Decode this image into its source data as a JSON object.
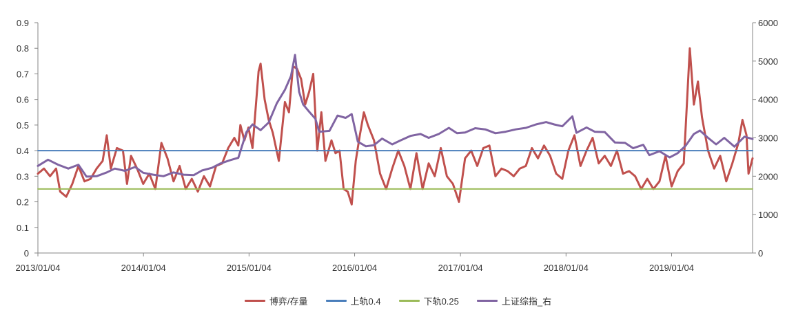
{
  "chart_data": {
    "type": "line",
    "title": "",
    "xlabel": "",
    "ylabel_left": "",
    "ylabel_right": "",
    "x_ticks": [
      "2013/01/04",
      "2014/01/04",
      "2015/01/04",
      "2016/01/04",
      "2017/01/04",
      "2018/01/04",
      "2019/01/04"
    ],
    "x_range": [
      "2013/01/04",
      "2019/10/11"
    ],
    "y_left_ticks": [
      "0",
      "0.1",
      "0.2",
      "0.3",
      "0.4",
      "0.5",
      "0.6",
      "0.7",
      "0.8",
      "0.9"
    ],
    "y_left_range": [
      0,
      0.9
    ],
    "y_right_ticks": [
      "0",
      "1000",
      "2000",
      "3000",
      "4000",
      "5000",
      "6000"
    ],
    "y_right_range": [
      0,
      6000
    ],
    "grid": false,
    "legend_position": "bottom",
    "series": [
      {
        "name": "博弈/存量",
        "axis": "left",
        "color": "#c0504d",
        "points": [
          [
            "2013/01/04",
            0.31
          ],
          [
            "2013/01/25",
            0.33
          ],
          [
            "2013/02/15",
            0.3
          ],
          [
            "2013/03/08",
            0.33
          ],
          [
            "2013/03/22",
            0.24
          ],
          [
            "2013/04/12",
            0.22
          ],
          [
            "2013/05/03",
            0.27
          ],
          [
            "2013/05/24",
            0.34
          ],
          [
            "2013/06/14",
            0.28
          ],
          [
            "2013/07/05",
            0.29
          ],
          [
            "2013/07/26",
            0.33
          ],
          [
            "2013/08/16",
            0.36
          ],
          [
            "2013/08/30",
            0.46
          ],
          [
            "2013/09/13",
            0.33
          ],
          [
            "2013/10/04",
            0.41
          ],
          [
            "2013/10/25",
            0.4
          ],
          [
            "2013/11/08",
            0.27
          ],
          [
            "2013/11/22",
            0.38
          ],
          [
            "2013/12/13",
            0.33
          ],
          [
            "2014/01/03",
            0.27
          ],
          [
            "2014/01/24",
            0.31
          ],
          [
            "2014/02/14",
            0.25
          ],
          [
            "2014/03/07",
            0.43
          ],
          [
            "2014/03/28",
            0.37
          ],
          [
            "2014/04/18",
            0.28
          ],
          [
            "2014/05/09",
            0.34
          ],
          [
            "2014/05/30",
            0.25
          ],
          [
            "2014/06/20",
            0.29
          ],
          [
            "2014/07/11",
            0.24
          ],
          [
            "2014/08/01",
            0.3
          ],
          [
            "2014/08/22",
            0.26
          ],
          [
            "2014/09/12",
            0.34
          ],
          [
            "2014/10/03",
            0.35
          ],
          [
            "2014/10/24",
            0.41
          ],
          [
            "2014/11/14",
            0.45
          ],
          [
            "2014/11/28",
            0.42
          ],
          [
            "2014/12/05",
            0.5
          ],
          [
            "2014/12/19",
            0.44
          ],
          [
            "2015/01/02",
            0.49
          ],
          [
            "2015/01/16",
            0.41
          ],
          [
            "2015/02/06",
            0.71
          ],
          [
            "2015/02/13",
            0.74
          ],
          [
            "2015/02/27",
            0.6
          ],
          [
            "2015/03/13",
            0.52
          ],
          [
            "2015/03/27",
            0.47
          ],
          [
            "2015/04/17",
            0.36
          ],
          [
            "2015/05/08",
            0.59
          ],
          [
            "2015/05/22",
            0.55
          ],
          [
            "2015/06/05",
            0.73
          ],
          [
            "2015/06/19",
            0.72
          ],
          [
            "2015/07/03",
            0.68
          ],
          [
            "2015/07/17",
            0.58
          ],
          [
            "2015/07/31",
            0.63
          ],
          [
            "2015/08/14",
            0.7
          ],
          [
            "2015/08/28",
            0.4
          ],
          [
            "2015/09/11",
            0.55
          ],
          [
            "2015/09/25",
            0.36
          ],
          [
            "2015/10/16",
            0.44
          ],
          [
            "2015/10/30",
            0.39
          ],
          [
            "2015/11/13",
            0.4
          ],
          [
            "2015/11/27",
            0.25
          ],
          [
            "2015/12/11",
            0.24
          ],
          [
            "2015/12/25",
            0.19
          ],
          [
            "2016/01/08",
            0.36
          ],
          [
            "2016/01/22",
            0.46
          ],
          [
            "2016/02/05",
            0.55
          ],
          [
            "2016/02/19",
            0.5
          ],
          [
            "2016/03/11",
            0.44
          ],
          [
            "2016/04/01",
            0.31
          ],
          [
            "2016/04/22",
            0.25
          ],
          [
            "2016/05/13",
            0.33
          ],
          [
            "2016/06/03",
            0.4
          ],
          [
            "2016/06/24",
            0.34
          ],
          [
            "2016/07/15",
            0.25
          ],
          [
            "2016/08/05",
            0.39
          ],
          [
            "2016/08/26",
            0.25
          ],
          [
            "2016/09/16",
            0.35
          ],
          [
            "2016/10/07",
            0.3
          ],
          [
            "2016/10/28",
            0.41
          ],
          [
            "2016/11/18",
            0.3
          ],
          [
            "2016/12/09",
            0.27
          ],
          [
            "2016/12/30",
            0.2
          ],
          [
            "2017/01/20",
            0.37
          ],
          [
            "2017/02/10",
            0.4
          ],
          [
            "2017/03/03",
            0.34
          ],
          [
            "2017/03/24",
            0.41
          ],
          [
            "2017/04/14",
            0.42
          ],
          [
            "2017/05/05",
            0.3
          ],
          [
            "2017/05/26",
            0.33
          ],
          [
            "2017/06/16",
            0.32
          ],
          [
            "2017/07/07",
            0.3
          ],
          [
            "2017/07/28",
            0.33
          ],
          [
            "2017/08/18",
            0.34
          ],
          [
            "2017/09/08",
            0.41
          ],
          [
            "2017/09/29",
            0.37
          ],
          [
            "2017/10/20",
            0.42
          ],
          [
            "2017/11/10",
            0.38
          ],
          [
            "2017/12/01",
            0.31
          ],
          [
            "2017/12/22",
            0.29
          ],
          [
            "2018/01/12",
            0.4
          ],
          [
            "2018/02/02",
            0.46
          ],
          [
            "2018/02/23",
            0.34
          ],
          [
            "2018/03/16",
            0.4
          ],
          [
            "2018/04/06",
            0.45
          ],
          [
            "2018/04/27",
            0.35
          ],
          [
            "2018/05/18",
            0.38
          ],
          [
            "2018/06/08",
            0.34
          ],
          [
            "2018/06/29",
            0.4
          ],
          [
            "2018/07/20",
            0.31
          ],
          [
            "2018/08/10",
            0.32
          ],
          [
            "2018/08/31",
            0.3
          ],
          [
            "2018/09/21",
            0.25
          ],
          [
            "2018/10/12",
            0.29
          ],
          [
            "2018/11/02",
            0.25
          ],
          [
            "2018/11/23",
            0.28
          ],
          [
            "2018/12/14",
            0.38
          ],
          [
            "2019/01/04",
            0.26
          ],
          [
            "2019/01/25",
            0.32
          ],
          [
            "2019/02/15",
            0.35
          ],
          [
            "2019/02/22",
            0.5
          ],
          [
            "2019/03/08",
            0.8
          ],
          [
            "2019/03/22",
            0.58
          ],
          [
            "2019/04/05",
            0.67
          ],
          [
            "2019/04/19",
            0.53
          ],
          [
            "2019/05/10",
            0.4
          ],
          [
            "2019/05/31",
            0.33
          ],
          [
            "2019/06/21",
            0.38
          ],
          [
            "2019/07/12",
            0.28
          ],
          [
            "2019/08/02",
            0.35
          ],
          [
            "2019/08/23",
            0.43
          ],
          [
            "2019/09/06",
            0.52
          ],
          [
            "2019/09/20",
            0.46
          ],
          [
            "2019/09/27",
            0.31
          ],
          [
            "2019/10/11",
            0.37
          ]
        ]
      },
      {
        "name": "上轨0.4",
        "axis": "left",
        "color": "#4a7ebb",
        "points": [
          [
            "2013/01/04",
            0.4
          ],
          [
            "2019/10/11",
            0.4
          ]
        ]
      },
      {
        "name": "下轨0.25",
        "axis": "left",
        "color": "#9bbb59",
        "points": [
          [
            "2013/01/04",
            0.25
          ],
          [
            "2019/10/11",
            0.25
          ]
        ]
      },
      {
        "name": "上证综指_右",
        "axis": "right",
        "color": "#8064a2",
        "points": [
          [
            "2013/01/04",
            2270
          ],
          [
            "2013/02/08",
            2430
          ],
          [
            "2013/03/15",
            2300
          ],
          [
            "2013/04/19",
            2200
          ],
          [
            "2013/05/24",
            2300
          ],
          [
            "2013/06/21",
            1990
          ],
          [
            "2013/07/26",
            2000
          ],
          [
            "2013/08/30",
            2100
          ],
          [
            "2013/09/27",
            2200
          ],
          [
            "2013/11/01",
            2140
          ],
          [
            "2013/12/06",
            2240
          ],
          [
            "2014/01/03",
            2090
          ],
          [
            "2014/02/07",
            2040
          ],
          [
            "2014/03/14",
            2000
          ],
          [
            "2014/04/18",
            2100
          ],
          [
            "2014/05/23",
            2040
          ],
          [
            "2014/06/27",
            2030
          ],
          [
            "2014/07/25",
            2150
          ],
          [
            "2014/08/29",
            2220
          ],
          [
            "2014/09/26",
            2330
          ],
          [
            "2014/10/31",
            2420
          ],
          [
            "2014/11/28",
            2480
          ],
          [
            "2014/12/26",
            3150
          ],
          [
            "2015/01/16",
            3350
          ],
          [
            "2015/02/13",
            3200
          ],
          [
            "2015/03/13",
            3400
          ],
          [
            "2015/04/10",
            3900
          ],
          [
            "2015/05/08",
            4250
          ],
          [
            "2015/05/29",
            4610
          ],
          [
            "2015/06/12",
            5160
          ],
          [
            "2015/06/26",
            4200
          ],
          [
            "2015/07/10",
            3870
          ],
          [
            "2015/07/31",
            3680
          ],
          [
            "2015/08/21",
            3500
          ],
          [
            "2015/09/04",
            3160
          ],
          [
            "2015/10/09",
            3180
          ],
          [
            "2015/11/06",
            3580
          ],
          [
            "2015/12/04",
            3520
          ],
          [
            "2015/12/25",
            3620
          ],
          [
            "2016/01/15",
            2900
          ],
          [
            "2016/02/12",
            2780
          ],
          [
            "2016/03/11",
            2810
          ],
          [
            "2016/04/08",
            2980
          ],
          [
            "2016/05/13",
            2830
          ],
          [
            "2016/06/10",
            2930
          ],
          [
            "2016/07/15",
            3050
          ],
          [
            "2016/08/19",
            3100
          ],
          [
            "2016/09/16",
            3000
          ],
          [
            "2016/10/21",
            3100
          ],
          [
            "2016/11/25",
            3260
          ],
          [
            "2016/12/23",
            3120
          ],
          [
            "2017/01/20",
            3140
          ],
          [
            "2017/02/24",
            3250
          ],
          [
            "2017/03/31",
            3220
          ],
          [
            "2017/05/05",
            3120
          ],
          [
            "2017/06/09",
            3160
          ],
          [
            "2017/07/14",
            3220
          ],
          [
            "2017/08/18",
            3260
          ],
          [
            "2017/09/22",
            3350
          ],
          [
            "2017/10/27",
            3410
          ],
          [
            "2017/11/24",
            3350
          ],
          [
            "2017/12/22",
            3300
          ],
          [
            "2018/01/26",
            3560
          ],
          [
            "2018/02/09",
            3130
          ],
          [
            "2018/03/16",
            3270
          ],
          [
            "2018/04/13",
            3160
          ],
          [
            "2018/05/18",
            3150
          ],
          [
            "2018/06/22",
            2880
          ],
          [
            "2018/07/27",
            2870
          ],
          [
            "2018/08/24",
            2730
          ],
          [
            "2018/09/28",
            2820
          ],
          [
            "2018/10/19",
            2550
          ],
          [
            "2018/11/23",
            2650
          ],
          [
            "2018/12/28",
            2490
          ],
          [
            "2019/01/25",
            2600
          ],
          [
            "2019/02/22",
            2800
          ],
          [
            "2019/03/22",
            3100
          ],
          [
            "2019/04/12",
            3190
          ],
          [
            "2019/05/10",
            3000
          ],
          [
            "2019/06/07",
            2830
          ],
          [
            "2019/07/05",
            3000
          ],
          [
            "2019/08/09",
            2770
          ],
          [
            "2019/09/13",
            3030
          ],
          [
            "2019/10/11",
            2970
          ]
        ]
      }
    ]
  }
}
